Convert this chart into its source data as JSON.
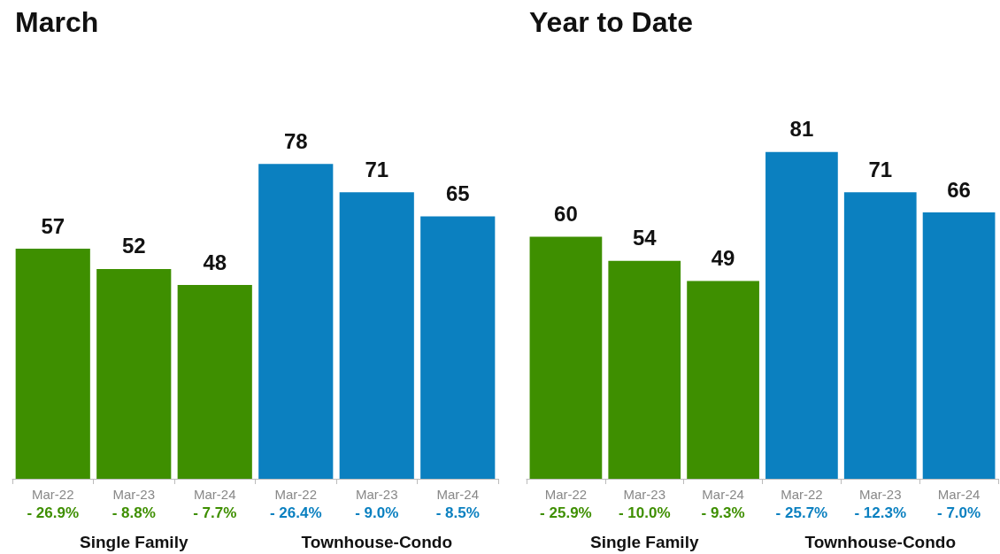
{
  "chart_data": [
    {
      "type": "bar",
      "title": "March",
      "categories": [
        "Mar-22",
        "Mar-23",
        "Mar-24",
        "Mar-22",
        "Mar-23",
        "Mar-24"
      ],
      "series": [
        {
          "color": "#3e8f00",
          "values": [
            57,
            52,
            48,
            null,
            null,
            null
          ]
        },
        {
          "color": "#0b80c0",
          "values": [
            null,
            null,
            null,
            78,
            71,
            65
          ]
        }
      ],
      "annotations": [
        "- 26.9%",
        "- 8.8%",
        "- 7.7%",
        "- 26.4%",
        "- 9.0%",
        "- 8.5%",
        "Single Family",
        "Townhouse-Condo"
      ],
      "data_labels": true
    },
    {
      "type": "bar",
      "title": "Year to Date",
      "categories": [
        "Mar-22",
        "Mar-23",
        "Mar-24",
        "Mar-22",
        "Mar-23",
        "Mar-24"
      ],
      "series": [
        {
          "color": "#3e8f00",
          "values": [
            60,
            54,
            49,
            null,
            null,
            null
          ]
        },
        {
          "color": "#0b80c0",
          "values": [
            null,
            null,
            null,
            81,
            71,
            66
          ]
        }
      ],
      "annotations": [
        "- 25.9%",
        "- 10.0%",
        "- 9.3%",
        "- 25.7%",
        "- 12.3%",
        "- 7.0%",
        "Single Family",
        "Townhouse-Condo"
      ],
      "data_labels": true
    }
  ]
}
